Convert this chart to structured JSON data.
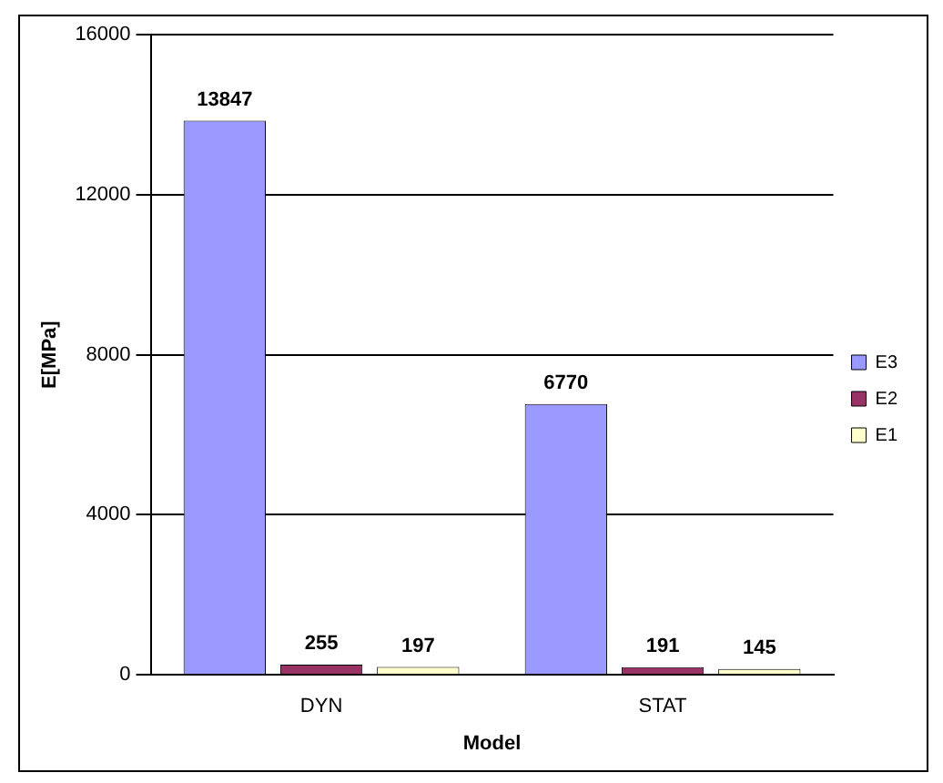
{
  "chart_data": {
    "type": "bar",
    "xlabel": "Model",
    "ylabel": "E[MPa]",
    "categories": [
      "DYN",
      "STAT"
    ],
    "series": [
      {
        "name": "E3",
        "color": "#9999ff",
        "values": [
          13847,
          6770
        ]
      },
      {
        "name": "E2",
        "color": "#993366",
        "values": [
          255,
          191
        ]
      },
      {
        "name": "E1",
        "color": "#ffffcc",
        "values": [
          197,
          145
        ]
      }
    ],
    "ylim": [
      0,
      16000
    ],
    "yticks": [
      0,
      4000,
      8000,
      12000,
      16000
    ],
    "grid": "y",
    "legend": "right",
    "data_labels": true
  }
}
